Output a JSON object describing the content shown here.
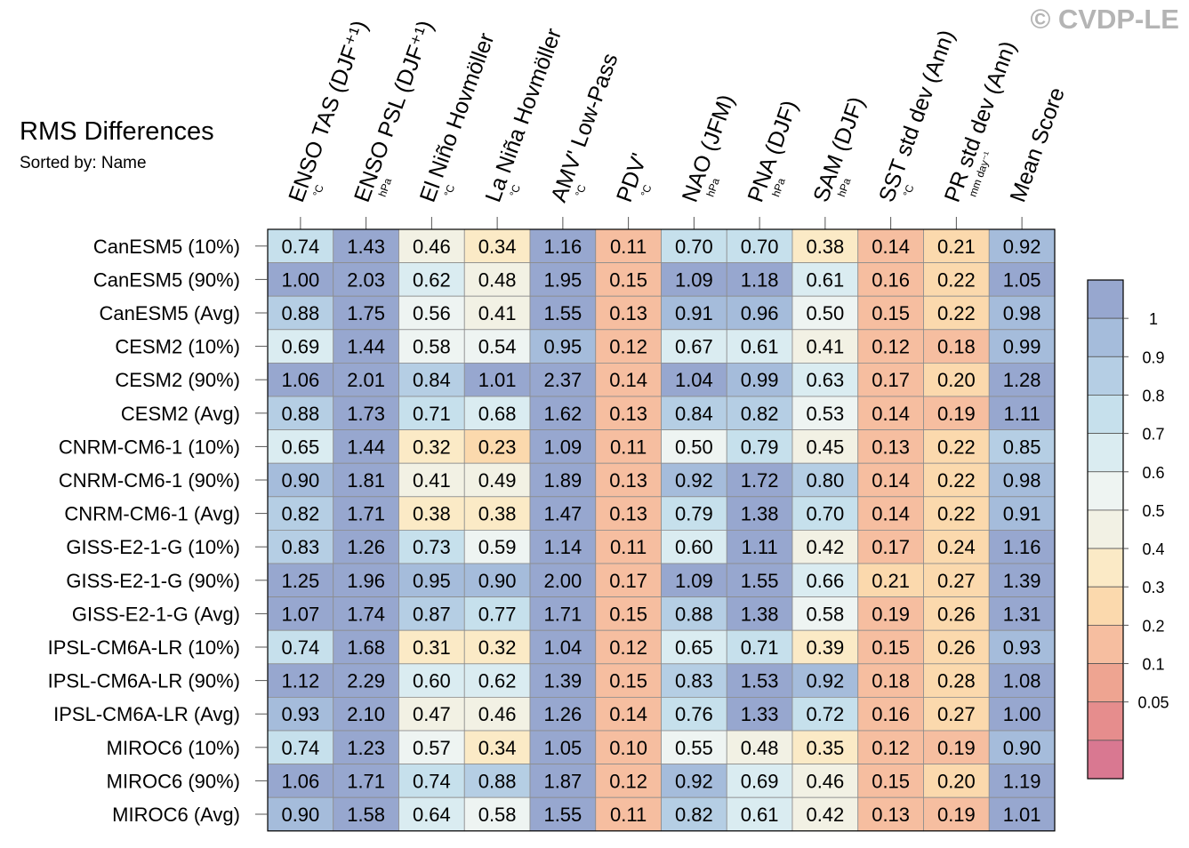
{
  "watermark": "© CVDP-LE",
  "title": "RMS Differences",
  "subtitle": "Sorted by: Name",
  "chart_data": {
    "type": "heatmap",
    "title": "RMS Differences",
    "subtitle": "Sorted by: Name",
    "columns": [
      {
        "label": "ENSO TAS (DJF⁺¹)",
        "unit": "°C"
      },
      {
        "label": "ENSO PSL (DJF⁺¹)",
        "unit": "hPa"
      },
      {
        "label": "El Niño Hovmöller",
        "unit": "°C"
      },
      {
        "label": "La Niña Hovmöller",
        "unit": "°C"
      },
      {
        "label": "AMV' Low-Pass",
        "unit": "°C"
      },
      {
        "label": "PDV'",
        "unit": "°C"
      },
      {
        "label": "NAO (JFM)",
        "unit": "hPa"
      },
      {
        "label": "PNA (DJF)",
        "unit": "hPa"
      },
      {
        "label": "SAM (DJF)",
        "unit": "hPa"
      },
      {
        "label": "SST std dev (Ann)",
        "unit": "°C"
      },
      {
        "label": "PR std dev (Ann)",
        "unit": "mm day⁻¹"
      },
      {
        "label": "Mean Score",
        "unit": ""
      }
    ],
    "rows": [
      "CanESM5 (10%)",
      "CanESM5 (90%)",
      "CanESM5 (Avg)",
      "CESM2 (10%)",
      "CESM2 (90%)",
      "CESM2 (Avg)",
      "CNRM-CM6-1 (10%)",
      "CNRM-CM6-1 (90%)",
      "CNRM-CM6-1 (Avg)",
      "GISS-E2-1-G (10%)",
      "GISS-E2-1-G (90%)",
      "GISS-E2-1-G (Avg)",
      "IPSL-CM6A-LR (10%)",
      "IPSL-CM6A-LR (90%)",
      "IPSL-CM6A-LR (Avg)",
      "MIROC6 (10%)",
      "MIROC6 (90%)",
      "MIROC6 (Avg)"
    ],
    "values": [
      [
        "0.74",
        "1.43",
        "0.46",
        "0.34",
        "1.16",
        "0.11",
        "0.70",
        "0.70",
        "0.38",
        "0.14",
        "0.21",
        "0.92"
      ],
      [
        "1.00",
        "2.03",
        "0.62",
        "0.48",
        "1.95",
        "0.15",
        "1.09",
        "1.18",
        "0.61",
        "0.16",
        "0.22",
        "1.05"
      ],
      [
        "0.88",
        "1.75",
        "0.56",
        "0.41",
        "1.55",
        "0.13",
        "0.91",
        "0.96",
        "0.50",
        "0.15",
        "0.22",
        "0.98"
      ],
      [
        "0.69",
        "1.44",
        "0.58",
        "0.54",
        "0.95",
        "0.12",
        "0.67",
        "0.61",
        "0.41",
        "0.12",
        "0.18",
        "0.99"
      ],
      [
        "1.06",
        "2.01",
        "0.84",
        "1.01",
        "2.37",
        "0.14",
        "1.04",
        "0.99",
        "0.63",
        "0.17",
        "0.20",
        "1.28"
      ],
      [
        "0.88",
        "1.73",
        "0.71",
        "0.68",
        "1.62",
        "0.13",
        "0.84",
        "0.82",
        "0.53",
        "0.14",
        "0.19",
        "1.11"
      ],
      [
        "0.65",
        "1.44",
        "0.32",
        "0.23",
        "1.09",
        "0.11",
        "0.50",
        "0.79",
        "0.45",
        "0.13",
        "0.22",
        "0.85"
      ],
      [
        "0.90",
        "1.81",
        "0.41",
        "0.49",
        "1.89",
        "0.13",
        "0.92",
        "1.72",
        "0.80",
        "0.14",
        "0.22",
        "0.98"
      ],
      [
        "0.82",
        "1.71",
        "0.38",
        "0.38",
        "1.47",
        "0.13",
        "0.79",
        "1.38",
        "0.70",
        "0.14",
        "0.22",
        "0.91"
      ],
      [
        "0.83",
        "1.26",
        "0.73",
        "0.59",
        "1.14",
        "0.11",
        "0.60",
        "1.11",
        "0.42",
        "0.17",
        "0.24",
        "1.16"
      ],
      [
        "1.25",
        "1.96",
        "0.95",
        "0.90",
        "2.00",
        "0.17",
        "1.09",
        "1.55",
        "0.66",
        "0.21",
        "0.27",
        "1.39"
      ],
      [
        "1.07",
        "1.74",
        "0.87",
        "0.77",
        "1.71",
        "0.15",
        "0.88",
        "1.38",
        "0.58",
        "0.19",
        "0.26",
        "1.31"
      ],
      [
        "0.74",
        "1.68",
        "0.31",
        "0.32",
        "1.04",
        "0.12",
        "0.65",
        "0.71",
        "0.39",
        "0.15",
        "0.26",
        "0.93"
      ],
      [
        "1.12",
        "2.29",
        "0.60",
        "0.62",
        "1.39",
        "0.15",
        "0.83",
        "1.53",
        "0.92",
        "0.18",
        "0.28",
        "1.08"
      ],
      [
        "0.93",
        "2.10",
        "0.47",
        "0.46",
        "1.26",
        "0.14",
        "0.76",
        "1.33",
        "0.72",
        "0.16",
        "0.27",
        "1.00"
      ],
      [
        "0.74",
        "1.23",
        "0.57",
        "0.34",
        "1.05",
        "0.10",
        "0.55",
        "0.48",
        "0.35",
        "0.12",
        "0.19",
        "0.90"
      ],
      [
        "1.06",
        "1.71",
        "0.74",
        "0.88",
        "1.87",
        "0.12",
        "0.92",
        "0.69",
        "0.46",
        "0.15",
        "0.20",
        "1.19"
      ],
      [
        "0.90",
        "1.58",
        "0.64",
        "0.58",
        "1.55",
        "0.11",
        "0.82",
        "0.61",
        "0.42",
        "0.13",
        "0.19",
        "1.01"
      ]
    ],
    "colorbar": {
      "labels": [
        "1",
        "0.9",
        "0.8",
        "0.7",
        "0.6",
        "0.5",
        "0.4",
        "0.3",
        "0.2",
        "0.1",
        "0.05"
      ],
      "thresholds": [
        1,
        0.9,
        0.8,
        0.7,
        0.6,
        0.5,
        0.4,
        0.3,
        0.2,
        0.1,
        0.05
      ],
      "colors": [
        "#97a7cf",
        "#a5bcdb",
        "#b5cee4",
        "#c6e0ec",
        "#daecf1",
        "#eef4f2",
        "#f2f1e4",
        "#fbeac6",
        "#fbd9ad",
        "#f6bea0",
        "#eea491",
        "#e68d8d",
        "#d97891"
      ],
      "placement": "right"
    }
  }
}
